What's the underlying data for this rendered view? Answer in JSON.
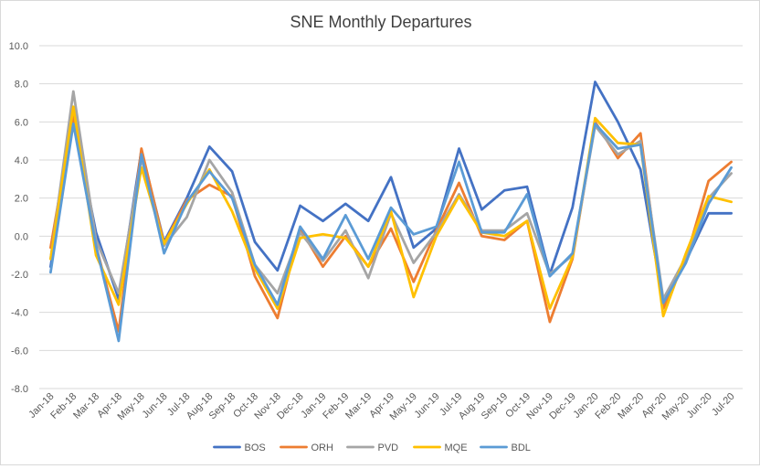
{
  "chart_data": {
    "type": "line",
    "title": "SNE Monthly Departures",
    "xlabel": "",
    "ylabel": "",
    "ylim": [
      -8.0,
      10.0
    ],
    "yticks": [
      "10.0",
      "8.0",
      "6.0",
      "4.0",
      "2.0",
      "0.0",
      "-2.0",
      "-4.0",
      "-6.0",
      "-8.0"
    ],
    "grid": true,
    "legend_position": "bottom",
    "categories": [
      "Jan-18",
      "Feb-18",
      "Mar-18",
      "Apr-18",
      "May-18",
      "Jun-18",
      "Jul-18",
      "Aug-18",
      "Sep-18",
      "Oct-18",
      "Nov-18",
      "Dec-18",
      "Jan-19",
      "Feb-19",
      "Mar-19",
      "Apr-19",
      "May-19",
      "Jun-19",
      "Jul-19",
      "Aug-19",
      "Sep-19",
      "Oct-19",
      "Nov-19",
      "Dec-19",
      "Jan-20",
      "Feb-20",
      "Mar-20",
      "Apr-20",
      "May-20",
      "Jun-20",
      "Jul-20"
    ],
    "series": [
      {
        "name": "BOS",
        "color": "#4472c4",
        "values": [
          -1.6,
          6.2,
          0.2,
          -3.3,
          4.5,
          -0.3,
          2.0,
          4.7,
          3.4,
          -0.3,
          -1.8,
          1.6,
          0.8,
          1.7,
          0.8,
          3.1,
          -0.6,
          0.4,
          4.6,
          1.4,
          2.4,
          2.6,
          -2.0,
          1.5,
          8.1,
          6.0,
          3.5,
          -3.5,
          -1.3,
          1.2,
          1.2
        ]
      },
      {
        "name": "ORH",
        "color": "#ed7d31",
        "values": [
          -0.6,
          6.4,
          -0.5,
          -5.0,
          4.6,
          -0.4,
          1.9,
          2.7,
          2.1,
          -2.1,
          -4.3,
          0.4,
          -1.6,
          0.0,
          -1.6,
          0.4,
          -2.4,
          0.3,
          2.8,
          0.0,
          -0.2,
          0.8,
          -4.5,
          -1.2,
          6.0,
          4.1,
          5.4,
          -3.8,
          -1.2,
          2.9,
          3.9
        ]
      },
      {
        "name": "PVD",
        "color": "#a5a5a5",
        "values": [
          -1.2,
          7.6,
          -0.2,
          -3.0,
          4.1,
          -0.5,
          1.0,
          4.0,
          2.3,
          -1.5,
          -3.0,
          0.2,
          -1.3,
          0.3,
          -2.2,
          1.2,
          -1.4,
          0.2,
          2.2,
          0.3,
          0.3,
          1.2,
          -2.0,
          -1.0,
          5.8,
          4.3,
          5.0,
          -3.3,
          -1.1,
          2.0,
          3.3
        ]
      },
      {
        "name": "MQE",
        "color": "#ffc000",
        "values": [
          -1.2,
          6.8,
          -1.0,
          -3.6,
          3.6,
          -0.4,
          1.7,
          3.5,
          1.3,
          -1.7,
          -3.8,
          -0.1,
          0.1,
          -0.1,
          -1.6,
          1.3,
          -3.2,
          0.0,
          2.1,
          0.2,
          0.0,
          0.8,
          -3.8,
          -1.1,
          6.2,
          4.9,
          4.8,
          -4.2,
          -0.9,
          2.1,
          1.8
        ]
      },
      {
        "name": "BDL",
        "color": "#5b9bd5",
        "values": [
          -1.9,
          5.9,
          -0.5,
          -5.5,
          4.3,
          -0.9,
          1.8,
          3.4,
          2.0,
          -1.5,
          -3.6,
          0.5,
          -1.2,
          1.1,
          -1.2,
          1.5,
          0.1,
          0.5,
          3.9,
          0.2,
          0.2,
          2.2,
          -2.1,
          -0.9,
          5.9,
          4.6,
          4.8,
          -3.5,
          -1.4,
          1.7,
          3.6
        ]
      }
    ]
  }
}
